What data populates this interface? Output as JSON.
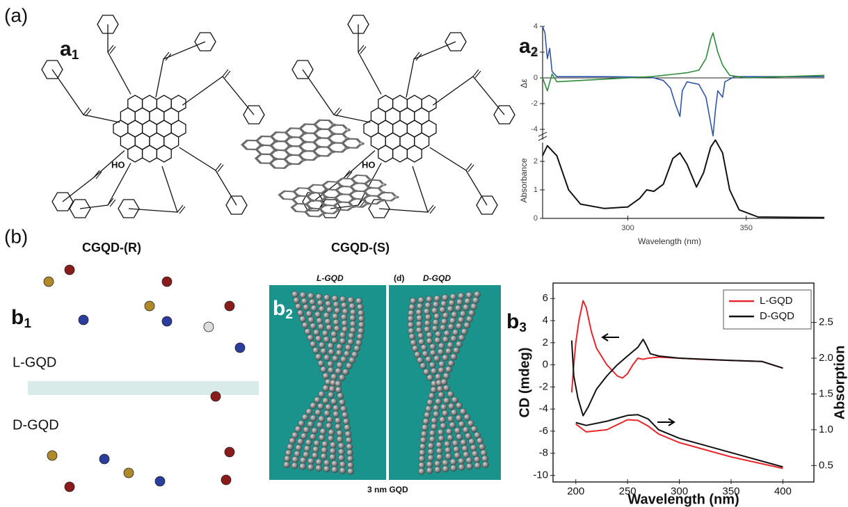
{
  "panels": {
    "a": "(a)",
    "b": "(b)",
    "a1": {
      "letter": "a",
      "sub": "1"
    },
    "a2": {
      "letter": "a",
      "sub": "2"
    },
    "b1": {
      "letter": "b",
      "sub": "1"
    },
    "b2": {
      "letter": "b",
      "sub": "2"
    },
    "b3": {
      "letter": "b",
      "sub": "3"
    },
    "molecules": [
      {
        "name": "CGQD-(R)",
        "oh": "HO"
      },
      {
        "name": "CGQD-(S)",
        "oh": "HO"
      }
    ],
    "models": {
      "top": "L-GQD",
      "bottom": "D-GQD"
    },
    "ribbons": {
      "left": "L-GQD",
      "mid": "(d)",
      "right": "D-GQD",
      "caption": "3 nm GQD"
    }
  },
  "chart_data": [
    {
      "type": "line",
      "ylabel": "Δε",
      "xlim": [
        264,
        383
      ],
      "ylim": [
        -4.8,
        4
      ],
      "yticks": [
        4,
        2,
        0,
        -2,
        -4
      ],
      "hline": 0,
      "series": [
        {
          "color": "#2f55a8",
          "x": [
            264,
            265,
            266,
            267,
            268,
            270,
            290,
            310,
            315,
            318,
            320,
            322,
            323,
            325,
            330,
            333,
            335,
            336,
            337,
            338,
            340,
            341,
            345,
            360,
            383
          ],
          "values": [
            4,
            3.5,
            1.5,
            2.3,
            0.5,
            0.1,
            0.1,
            0.05,
            -0.2,
            -0.8,
            -2.0,
            -3.0,
            -1.0,
            -0.3,
            -0.5,
            -1.5,
            -3.5,
            -4.5,
            -2.5,
            -1.0,
            -1.5,
            -0.3,
            0.1,
            0.1,
            0.1
          ]
        },
        {
          "color": "#2e8b3a",
          "x": [
            264,
            266,
            268,
            270,
            280,
            300,
            310,
            320,
            325,
            330,
            333,
            335,
            336,
            338,
            340,
            343,
            350,
            383
          ],
          "values": [
            0,
            -1.0,
            0.3,
            -0.3,
            -0.2,
            0,
            0.1,
            0.3,
            0.4,
            0.6,
            1.5,
            3,
            3.5,
            2,
            1,
            0.2,
            0,
            0.2
          ]
        }
      ]
    },
    {
      "type": "line",
      "xlabel": "Wavelength (nm)",
      "ylabel": "Absorbance",
      "xlim": [
        264,
        383
      ],
      "ylim": [
        0,
        2.66
      ],
      "xticks": [
        300,
        350
      ],
      "yticks": [
        0,
        1,
        2
      ],
      "series": [
        {
          "color": "#111111",
          "x": [
            264,
            266,
            270,
            275,
            280,
            290,
            300,
            305,
            308,
            311,
            315,
            319,
            322,
            325,
            329,
            332,
            335,
            337,
            340,
            343,
            347,
            355,
            383
          ],
          "values": [
            2.2,
            2.55,
            2.2,
            1.0,
            0.5,
            0.35,
            0.4,
            0.7,
            1.0,
            0.95,
            1.2,
            2.1,
            2.3,
            1.9,
            1.1,
            1.6,
            2.5,
            2.75,
            2.3,
            1.0,
            0.3,
            0.05,
            0.03
          ]
        }
      ]
    },
    {
      "type": "line",
      "xlabel": "Wavelength (nm)",
      "ylabel": "CD (mdeg)",
      "y2label": "Absorption",
      "xlim": [
        178,
        430
      ],
      "ylim": [
        -10.6,
        7.4
      ],
      "y2lim": [
        0.27,
        3.05
      ],
      "xticks": [
        200,
        250,
        300,
        350,
        400
      ],
      "yticks": [
        -10,
        -8,
        -6,
        -4,
        -2,
        0,
        2,
        4,
        6
      ],
      "y2ticks": [
        0.5,
        {
          "value": 1,
          "label": "1.0"
        },
        1.5,
        {
          "value": 2,
          "label": "2.0"
        },
        2.5
      ],
      "legend": "upper right",
      "series": [
        {
          "name": "L-GQD",
          "color": "#e8262b",
          "x": [
            196,
            198,
            200,
            203,
            207,
            210,
            215,
            220,
            230,
            240,
            245,
            250,
            255,
            260,
            265,
            270,
            280,
            300,
            320,
            350,
            380,
            400
          ],
          "values": [
            -2.5,
            0,
            2,
            4,
            5.8,
            5.2,
            3,
            1.5,
            0,
            -1.0,
            -1.2,
            -0.8,
            0,
            0.6,
            0.5,
            0.6,
            0.7,
            0.6,
            0.5,
            0.4,
            0.3,
            -0.3
          ]
        },
        {
          "name": "D-GQD",
          "color": "#111111",
          "x": [
            196,
            198,
            202,
            207,
            212,
            220,
            230,
            240,
            250,
            260,
            265,
            268,
            272,
            280,
            300,
            350,
            380,
            400
          ],
          "values": [
            2.2,
            -1,
            -3,
            -4.6,
            -3.8,
            -2.2,
            -1,
            0,
            0.8,
            1.6,
            2.3,
            1.8,
            1.0,
            0.8,
            0.6,
            0.4,
            0.3,
            -0.3
          ]
        },
        {
          "color": "#e8262b",
          "axis": "y2",
          "x": [
            200,
            210,
            230,
            250,
            260,
            270,
            280,
            300,
            350,
            400
          ],
          "values": [
            1.08,
            0.97,
            1.0,
            1.14,
            1.13,
            1.05,
            0.94,
            0.82,
            0.62,
            0.46
          ]
        },
        {
          "color": "#111111",
          "axis": "y2",
          "x": [
            200,
            210,
            230,
            250,
            260,
            270,
            280,
            300,
            350,
            400
          ],
          "values": [
            1.1,
            1.06,
            1.12,
            1.2,
            1.21,
            1.15,
            1.0,
            0.88,
            0.68,
            0.48
          ]
        }
      ]
    }
  ]
}
